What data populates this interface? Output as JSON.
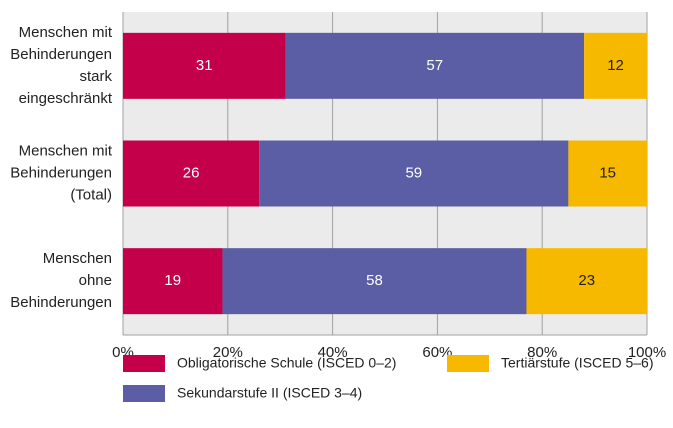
{
  "chart_data": {
    "type": "stacked-barh",
    "categories": [
      [
        "Menschen mit",
        "Behinderungen",
        "stark",
        "eingeschränkt"
      ],
      [
        "Menschen mit",
        "Behinderungen",
        "(Total)"
      ],
      [
        "Menschen",
        "ohne",
        "Behinderungen"
      ]
    ],
    "series": [
      {
        "name": "Obligatorische Schule (ISCED 0–2)",
        "color": "#c4004a",
        "values": [
          31,
          26,
          19
        ]
      },
      {
        "name": "Sekundarstufe II (ISCED 3–4)",
        "color": "#5b5da5",
        "values": [
          57,
          59,
          58
        ]
      },
      {
        "name": "Tertiärstufe (ISCED 5–6)",
        "color": "#f7b900",
        "values": [
          12,
          15,
          23
        ]
      }
    ],
    "xlim": [
      0,
      100
    ],
    "xticks": [
      {
        "value": 0,
        "label": "0%"
      },
      {
        "value": 20,
        "label": "20%"
      },
      {
        "value": 40,
        "label": "40%"
      },
      {
        "value": 60,
        "label": "60%"
      },
      {
        "value": 80,
        "label": "80%"
      },
      {
        "value": 100,
        "label": "100%"
      }
    ],
    "grid": true
  }
}
